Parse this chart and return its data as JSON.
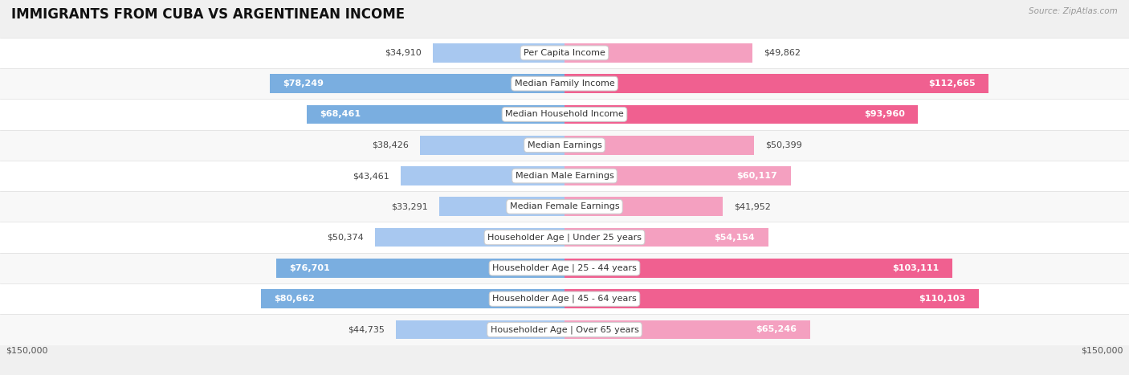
{
  "title": "IMMIGRANTS FROM CUBA VS ARGENTINEAN INCOME",
  "source": "Source: ZipAtlas.com",
  "categories": [
    "Per Capita Income",
    "Median Family Income",
    "Median Household Income",
    "Median Earnings",
    "Median Male Earnings",
    "Median Female Earnings",
    "Householder Age | Under 25 years",
    "Householder Age | 25 - 44 years",
    "Householder Age | 45 - 64 years",
    "Householder Age | Over 65 years"
  ],
  "cuba_values": [
    34910,
    78249,
    68461,
    38426,
    43461,
    33291,
    50374,
    76701,
    80662,
    44735
  ],
  "arg_values": [
    49862,
    112665,
    93960,
    50399,
    60117,
    41952,
    54154,
    103111,
    110103,
    65246
  ],
  "cuba_labels": [
    "$34,910",
    "$78,249",
    "$68,461",
    "$38,426",
    "$43,461",
    "$33,291",
    "$50,374",
    "$76,701",
    "$80,662",
    "$44,735"
  ],
  "arg_labels": [
    "$49,862",
    "$112,665",
    "$93,960",
    "$50,399",
    "$60,117",
    "$41,952",
    "$54,154",
    "$103,111",
    "$110,103",
    "$65,246"
  ],
  "cuba_high": [
    false,
    true,
    true,
    false,
    false,
    false,
    false,
    true,
    true,
    false
  ],
  "arg_high": [
    false,
    true,
    true,
    false,
    false,
    false,
    false,
    true,
    true,
    false
  ],
  "cuba_color": "#a8c8f0",
  "arg_color": "#f4a0c0",
  "cuba_color_strong": "#7aaee0",
  "arg_color_strong": "#f06090",
  "max_val": 150000,
  "bg_color": "#f0f0f0",
  "row_bg_odd": "#ffffff",
  "row_bg_even": "#f8f8f8",
  "label_fontsize": 8,
  "cat_fontsize": 8,
  "title_fontsize": 12,
  "val_threshold": 52000
}
